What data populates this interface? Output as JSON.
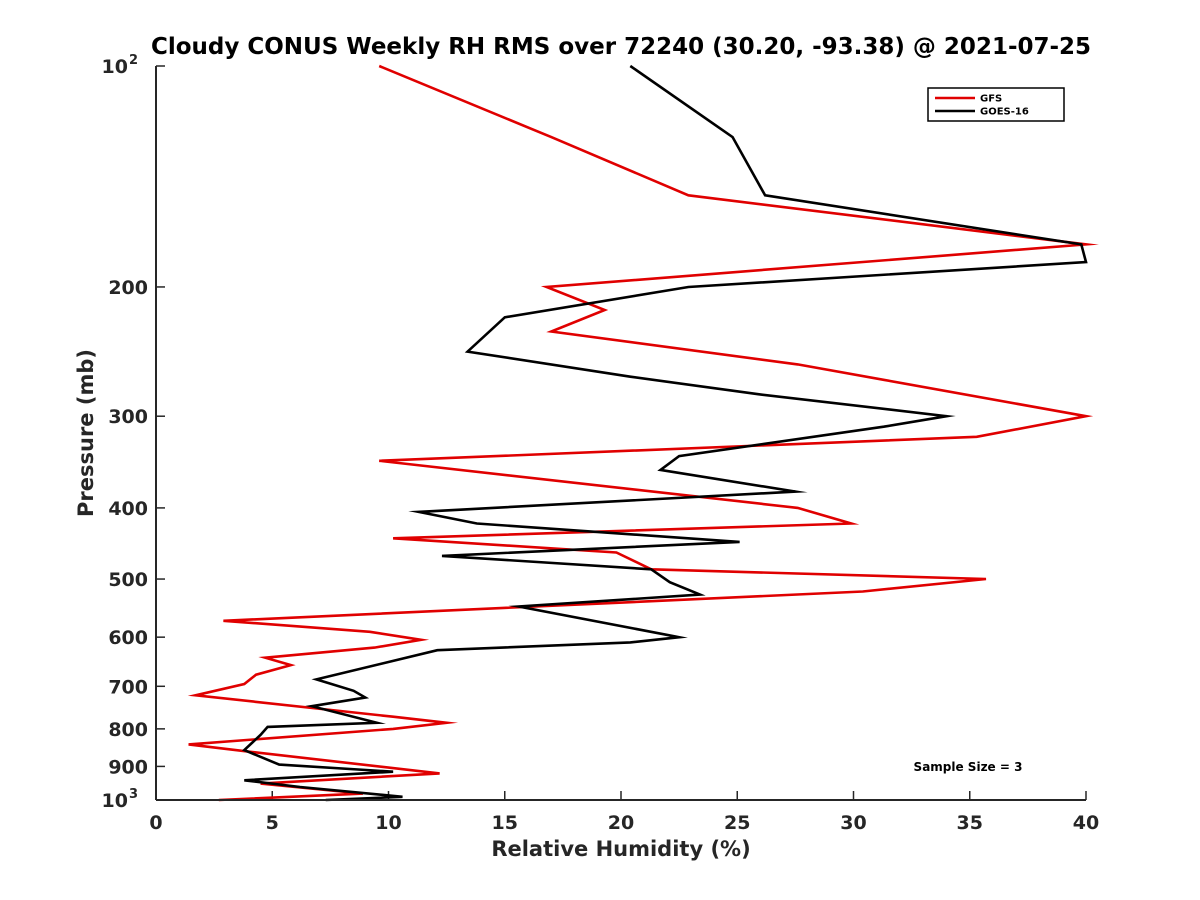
{
  "chart_data": {
    "type": "line",
    "title": "Cloudy CONUS Weekly RH RMS over 72240 (30.20, -93.38) @ 2021-07-25",
    "xlabel": "Relative Humidity (%)",
    "ylabel": "Pressure (mb)",
    "xlim": [
      0,
      40
    ],
    "ylim": [
      100,
      1000
    ],
    "yscale": "log",
    "y_reversed": true,
    "grid": false,
    "xticks": [
      "0",
      "5",
      "10",
      "15",
      "20",
      "25",
      "30",
      "35",
      "40"
    ],
    "yticks": [
      {
        "value": 100,
        "base": "10",
        "exp": "2"
      },
      {
        "value": 200,
        "label": "200"
      },
      {
        "value": 300,
        "label": "300"
      },
      {
        "value": 400,
        "label": "400"
      },
      {
        "value": 500,
        "label": "500"
      },
      {
        "value": 600,
        "label": "600"
      },
      {
        "value": 700,
        "label": "700"
      },
      {
        "value": 800,
        "label": "800"
      },
      {
        "value": 900,
        "label": "900"
      },
      {
        "value": 1000,
        "base": "10",
        "exp": "3"
      }
    ],
    "legend_position": "top-right",
    "annotation": "Sample Size = 3",
    "series": [
      {
        "name": "GFS",
        "color": "#e00000",
        "points": [
          [
            9.6,
            100
          ],
          [
            17,
            125
          ],
          [
            22.9,
            150
          ],
          [
            40,
            175
          ],
          [
            16.8,
            200
          ],
          [
            19.3,
            215
          ],
          [
            17,
            230
          ],
          [
            27.6,
            255
          ],
          [
            40,
            300
          ],
          [
            35.3,
            320
          ],
          [
            9.6,
            345
          ],
          [
            27.6,
            400
          ],
          [
            29.9,
            420
          ],
          [
            10.2,
            440
          ],
          [
            19.8,
            460
          ],
          [
            21.3,
            485
          ],
          [
            35.7,
            500
          ],
          [
            30.4,
            520
          ],
          [
            2.9,
            570
          ],
          [
            9.2,
            590
          ],
          [
            11.4,
            605
          ],
          [
            9.4,
            620
          ],
          [
            4.7,
            640
          ],
          [
            5.8,
            655
          ],
          [
            4.3,
            675
          ],
          [
            3.8,
            695
          ],
          [
            1.7,
            720
          ],
          [
            10.2,
            770
          ],
          [
            12.5,
            785
          ],
          [
            10.2,
            800
          ],
          [
            1.4,
            840
          ],
          [
            4.1,
            860
          ],
          [
            12.2,
            920
          ],
          [
            4.5,
            950
          ],
          [
            8.9,
            980
          ],
          [
            2.7,
            1000
          ]
        ]
      },
      {
        "name": "GOES-16",
        "color": "#000000",
        "points": [
          [
            20.4,
            100
          ],
          [
            24.8,
            125
          ],
          [
            26.2,
            150
          ],
          [
            39.8,
            175
          ],
          [
            40,
            185
          ],
          [
            22.9,
            200
          ],
          [
            15,
            220
          ],
          [
            13.4,
            245
          ],
          [
            20.4,
            265
          ],
          [
            25.9,
            280
          ],
          [
            34,
            300
          ],
          [
            31.3,
            310
          ],
          [
            22.5,
            340
          ],
          [
            21.7,
            355
          ],
          [
            27.5,
            380
          ],
          [
            11.3,
            405
          ],
          [
            13.8,
            420
          ],
          [
            25.1,
            445
          ],
          [
            12.3,
            465
          ],
          [
            21.3,
            485
          ],
          [
            22.1,
            505
          ],
          [
            23.4,
            525
          ],
          [
            15.6,
            545
          ],
          [
            22.5,
            600
          ],
          [
            20.4,
            610
          ],
          [
            12.1,
            625
          ],
          [
            6.9,
            685
          ],
          [
            8.5,
            710
          ],
          [
            9.0,
            725
          ],
          [
            6.7,
            745
          ],
          [
            9.5,
            785
          ],
          [
            4.8,
            795
          ],
          [
            4.5,
            815
          ],
          [
            3.8,
            855
          ],
          [
            5.3,
            895
          ],
          [
            10.2,
            915
          ],
          [
            3.8,
            940
          ],
          [
            6.2,
            960
          ],
          [
            10.6,
            990
          ],
          [
            7.3,
            1000
          ]
        ]
      }
    ]
  }
}
